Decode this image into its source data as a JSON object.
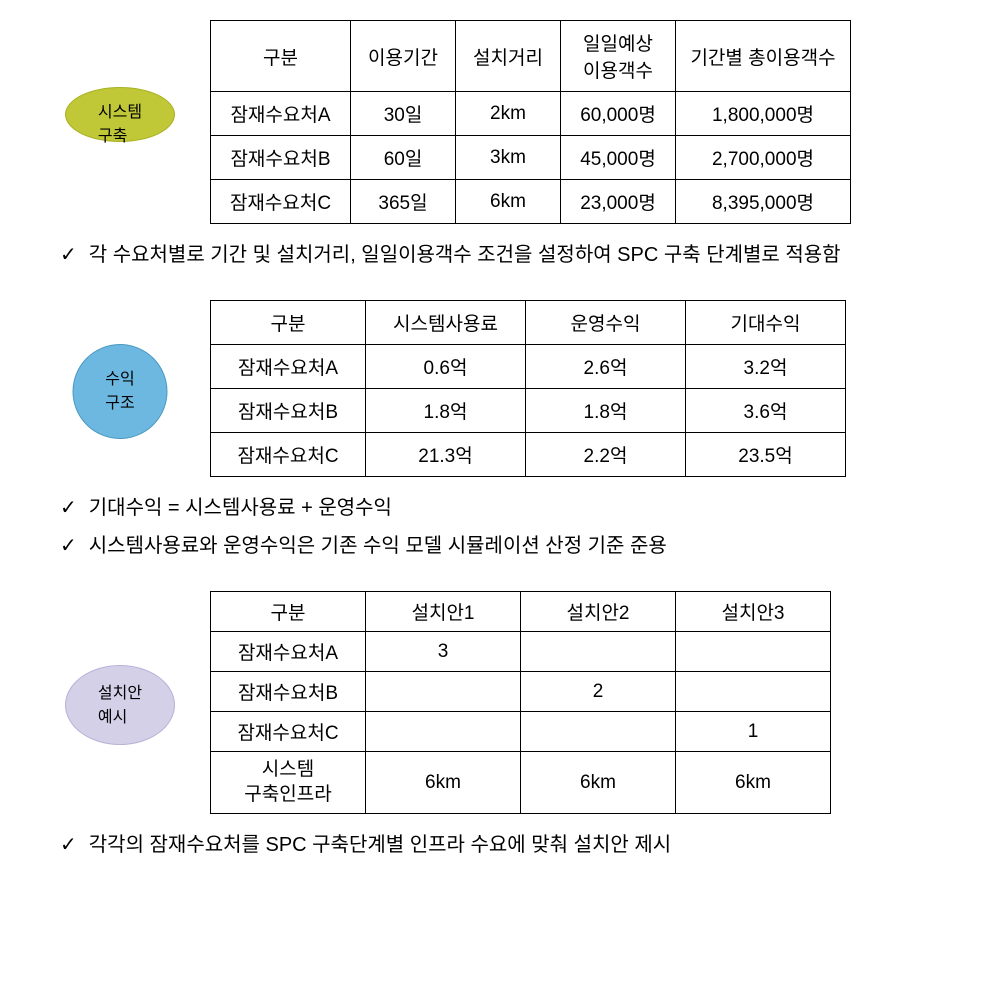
{
  "section1": {
    "badge_line1": "시스템",
    "badge_line2": "구축",
    "badge_bg": "#c0c838",
    "headers": [
      "구분",
      "이용기간",
      "설치거리",
      "일일예상\n이용객수",
      "기간별 총이용객수"
    ],
    "rows": [
      [
        "잠재수요처A",
        "30일",
        "2km",
        "60,000명",
        "1,800,000명"
      ],
      [
        "잠재수요처B",
        "60일",
        "3km",
        "45,000명",
        "2,700,000명"
      ],
      [
        "잠재수요처C",
        "365일",
        "6km",
        "23,000명",
        "8,395,000명"
      ]
    ],
    "notes": [
      "각 수요처별로 기간 및 설치거리, 일일이용객수 조건을 설정하여 SPC 구축 단계별로 적용함"
    ]
  },
  "section2": {
    "badge_line1": "수익",
    "badge_line2": "구조",
    "badge_bg": "#6db8e0",
    "headers": [
      "구분",
      "시스템사용료",
      "운영수익",
      "기대수익"
    ],
    "rows": [
      [
        "잠재수요처A",
        "0.6억",
        "2.6억",
        "3.2억"
      ],
      [
        "잠재수요처B",
        "1.8억",
        "1.8억",
        "3.6억"
      ],
      [
        "잠재수요처C",
        "21.3억",
        "2.2억",
        "23.5억"
      ]
    ],
    "notes": [
      "기대수익 = 시스템사용료 + 운영수익",
      "시스템사용료와 운영수익은 기존 수익 모델 시뮬레이션 산정 기준 준용"
    ]
  },
  "section3": {
    "badge_line1": "설치안",
    "badge_line2": "예시",
    "badge_bg": "#d4d0e8",
    "headers": [
      "구분",
      "설치안1",
      "설치안2",
      "설치안3"
    ],
    "rows": [
      [
        "잠재수요처A",
        "3",
        "",
        ""
      ],
      [
        "잠재수요처B",
        "",
        "2",
        ""
      ],
      [
        "잠재수요처C",
        "",
        "",
        "1"
      ],
      [
        "시스템\n구축인프라",
        "6km",
        "6km",
        "6km"
      ]
    ],
    "notes": [
      "각각의 잠재수요처를 SPC 구축단계별 인프라 수요에 맞춰 설치안 제시"
    ]
  },
  "checkmark": "✓"
}
